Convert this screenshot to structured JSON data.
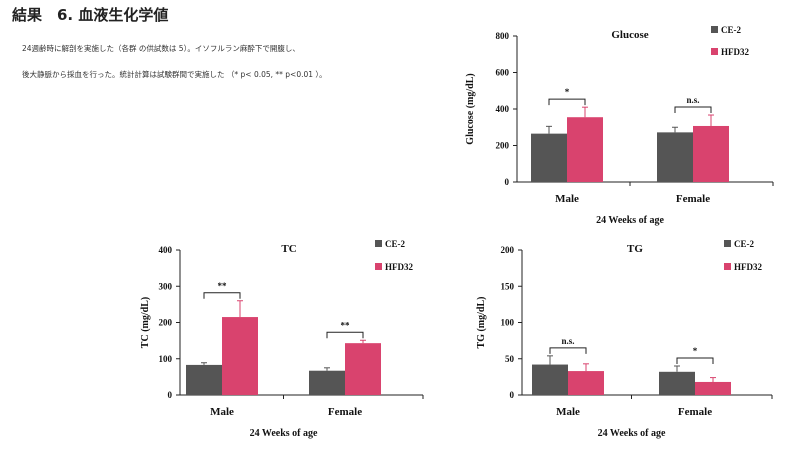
{
  "page": {
    "heading": "結果　6. 血液生化学値",
    "note_line1": "24週齢時に解剖を実施した（各群 の供試数は 5）。イソフルラン麻酔下で開腹し、",
    "note_line2": "後大静脈から採血を行った。統計計算は試験群間で実施した （* p< 0.05, ** p<0.01 ）。"
  },
  "colors": {
    "ce2": "#555555",
    "hfd32": "#d9436e",
    "axis": "#222222"
  },
  "chart_data": [
    {
      "id": "glucose",
      "type": "bar",
      "title": "Glucose",
      "xlabel": "24 Weeks of age",
      "ylabel": "Glucose (mg/dL)",
      "ylim": [
        0,
        800
      ],
      "yticks": [
        0,
        200,
        400,
        600,
        800
      ],
      "legend": "top-right",
      "categories": [
        "Male",
        "Female"
      ],
      "series": [
        {
          "name": "CE-2",
          "values": [
            265,
            272
          ],
          "errors": [
            40,
            28
          ]
        },
        {
          "name": "HFD32",
          "values": [
            355,
            307
          ],
          "errors": [
            55,
            60
          ]
        }
      ],
      "significance": [
        "*",
        "n.s."
      ]
    },
    {
      "id": "tc",
      "type": "bar",
      "title": "TC",
      "xlabel": "24 Weeks of age",
      "ylabel": "TC (mg/dL)",
      "ylim": [
        0,
        400
      ],
      "yticks": [
        0,
        100,
        200,
        300,
        400
      ],
      "legend": "top-right",
      "categories": [
        "Male",
        "Female"
      ],
      "series": [
        {
          "name": "CE-2",
          "values": [
            83,
            67
          ],
          "errors": [
            6,
            8
          ]
        },
        {
          "name": "HFD32",
          "values": [
            215,
            143
          ],
          "errors": [
            45,
            8
          ]
        }
      ],
      "significance": [
        "**",
        "**"
      ]
    },
    {
      "id": "tg",
      "type": "bar",
      "title": "TG",
      "xlabel": "24 Weeks of age",
      "ylabel": "TG (mg/dL)",
      "ylim": [
        0,
        200
      ],
      "yticks": [
        0,
        50,
        100,
        150,
        200
      ],
      "legend": "top-right",
      "categories": [
        "Male",
        "Female"
      ],
      "series": [
        {
          "name": "CE-2",
          "values": [
            42,
            32
          ],
          "errors": [
            12,
            8
          ]
        },
        {
          "name": "HFD32",
          "values": [
            33,
            18
          ],
          "errors": [
            10,
            6
          ]
        }
      ],
      "significance": [
        "n.s.",
        "*"
      ]
    }
  ]
}
